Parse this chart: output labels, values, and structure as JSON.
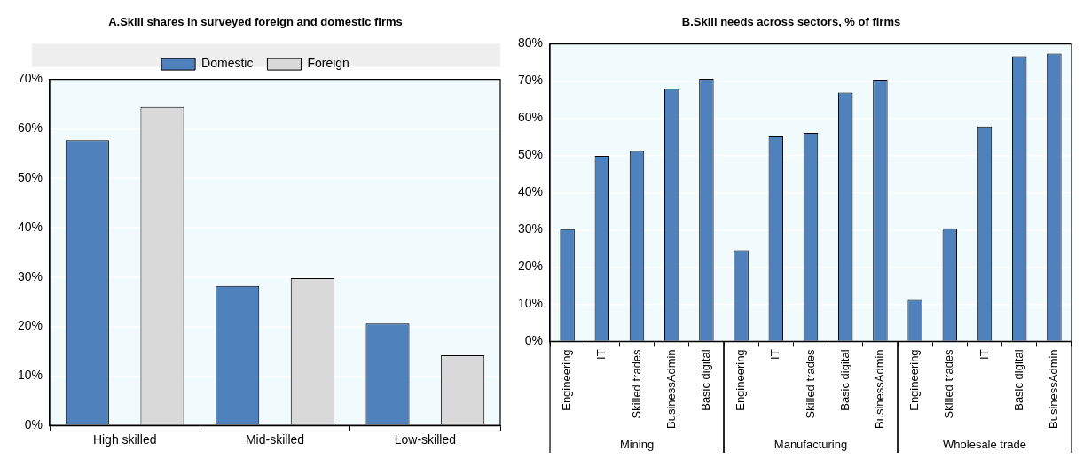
{
  "chart_data": [
    {
      "type": "bar",
      "title": "A.Skill shares in surveyed foreign and domestic firms",
      "categories": [
        "High skilled",
        "Mid-skilled",
        "Low-skilled"
      ],
      "series": [
        {
          "name": "Domestic",
          "color": "#4f81bd",
          "values": [
            57.7,
            28.2,
            20.6
          ]
        },
        {
          "name": "Foreign",
          "color": "#d9d9d9",
          "values": [
            64.4,
            29.8,
            14.2
          ]
        }
      ],
      "ylim": [
        0,
        70
      ],
      "yticks": [
        {
          "value": 0,
          "label": "0%"
        },
        {
          "value": 10,
          "label": "10%"
        },
        {
          "value": 20,
          "label": "20%"
        },
        {
          "value": 30,
          "label": "30%"
        },
        {
          "value": 40,
          "label": "40%"
        },
        {
          "value": 50,
          "label": "50%"
        },
        {
          "value": 60,
          "label": "60%"
        },
        {
          "value": 70,
          "label": "70%"
        }
      ],
      "grid": "y",
      "legend": "top"
    },
    {
      "type": "bar",
      "title": "B.Skill needs across sectors, % of firms",
      "categories": [
        "Engineering",
        "IT",
        "Skilled trades",
        "BusinessAdmin",
        "Basic digital",
        "Engineering",
        "IT",
        "Skilled trades",
        "Basic digital",
        "BusinessAdmin",
        "Engineering",
        "Skilled trades",
        "IT",
        "Basic digital",
        "BusinessAdmin"
      ],
      "series": [
        {
          "color": "#4f81bd",
          "values": [
            30.2,
            49.9,
            51.2,
            68.0,
            70.6,
            24.5,
            55.1,
            56.1,
            66.9,
            70.4,
            11.2,
            30.4,
            57.8,
            76.7,
            77.4
          ]
        }
      ],
      "ylim": [
        0,
        80
      ],
      "yticks": [
        {
          "value": 0,
          "label": "0%"
        },
        {
          "value": 10,
          "label": "10%"
        },
        {
          "value": 20,
          "label": "20%"
        },
        {
          "value": 30,
          "label": "30%"
        },
        {
          "value": 40,
          "label": "40%"
        },
        {
          "value": 50,
          "label": "50%"
        },
        {
          "value": 60,
          "label": "60%"
        },
        {
          "value": 70,
          "label": "70%"
        },
        {
          "value": 80,
          "label": "80%"
        }
      ],
      "grid": "y",
      "annotations": [
        "Mining",
        "Manufacturing",
        "Wholesale trade"
      ]
    }
  ]
}
